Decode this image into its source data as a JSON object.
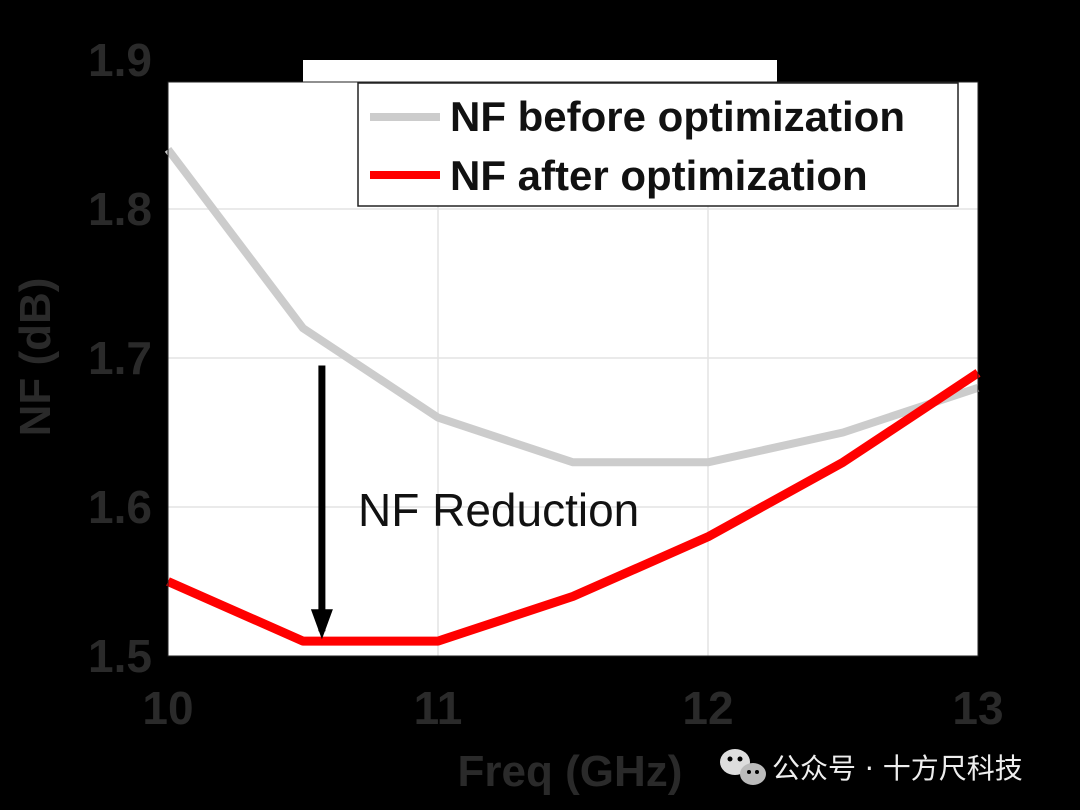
{
  "chart_data": {
    "type": "line",
    "xlabel": "Freq (GHz)",
    "ylabel": "NF (dB)",
    "xlim": [
      10,
      13
    ],
    "ylim": [
      1.5,
      1.9
    ],
    "xticks": [
      "10",
      "11",
      "12",
      "13"
    ],
    "yticks": [
      "1.5",
      "1.6",
      "1.7",
      "1.8",
      "1.9"
    ],
    "grid": true,
    "legend_position": "top-right",
    "x": [
      10,
      10.5,
      11,
      11.5,
      12,
      12.5,
      13
    ],
    "series": [
      {
        "name": "NF before optimization",
        "color": "#cccccc",
        "values": [
          1.84,
          1.72,
          1.66,
          1.63,
          1.63,
          1.65,
          1.68
        ]
      },
      {
        "name": "NF after optimization",
        "color": "#ff0000",
        "values": [
          1.55,
          1.51,
          1.51,
          1.54,
          1.58,
          1.63,
          1.69
        ]
      }
    ],
    "annotation": {
      "text": "NF Reduction",
      "arrow_x": 10.57,
      "arrow_from_y": 1.695,
      "arrow_to_y": 1.53
    }
  },
  "watermark": {
    "text": "公众号 · 十方尺科技",
    "icon": "wechat-icon"
  }
}
